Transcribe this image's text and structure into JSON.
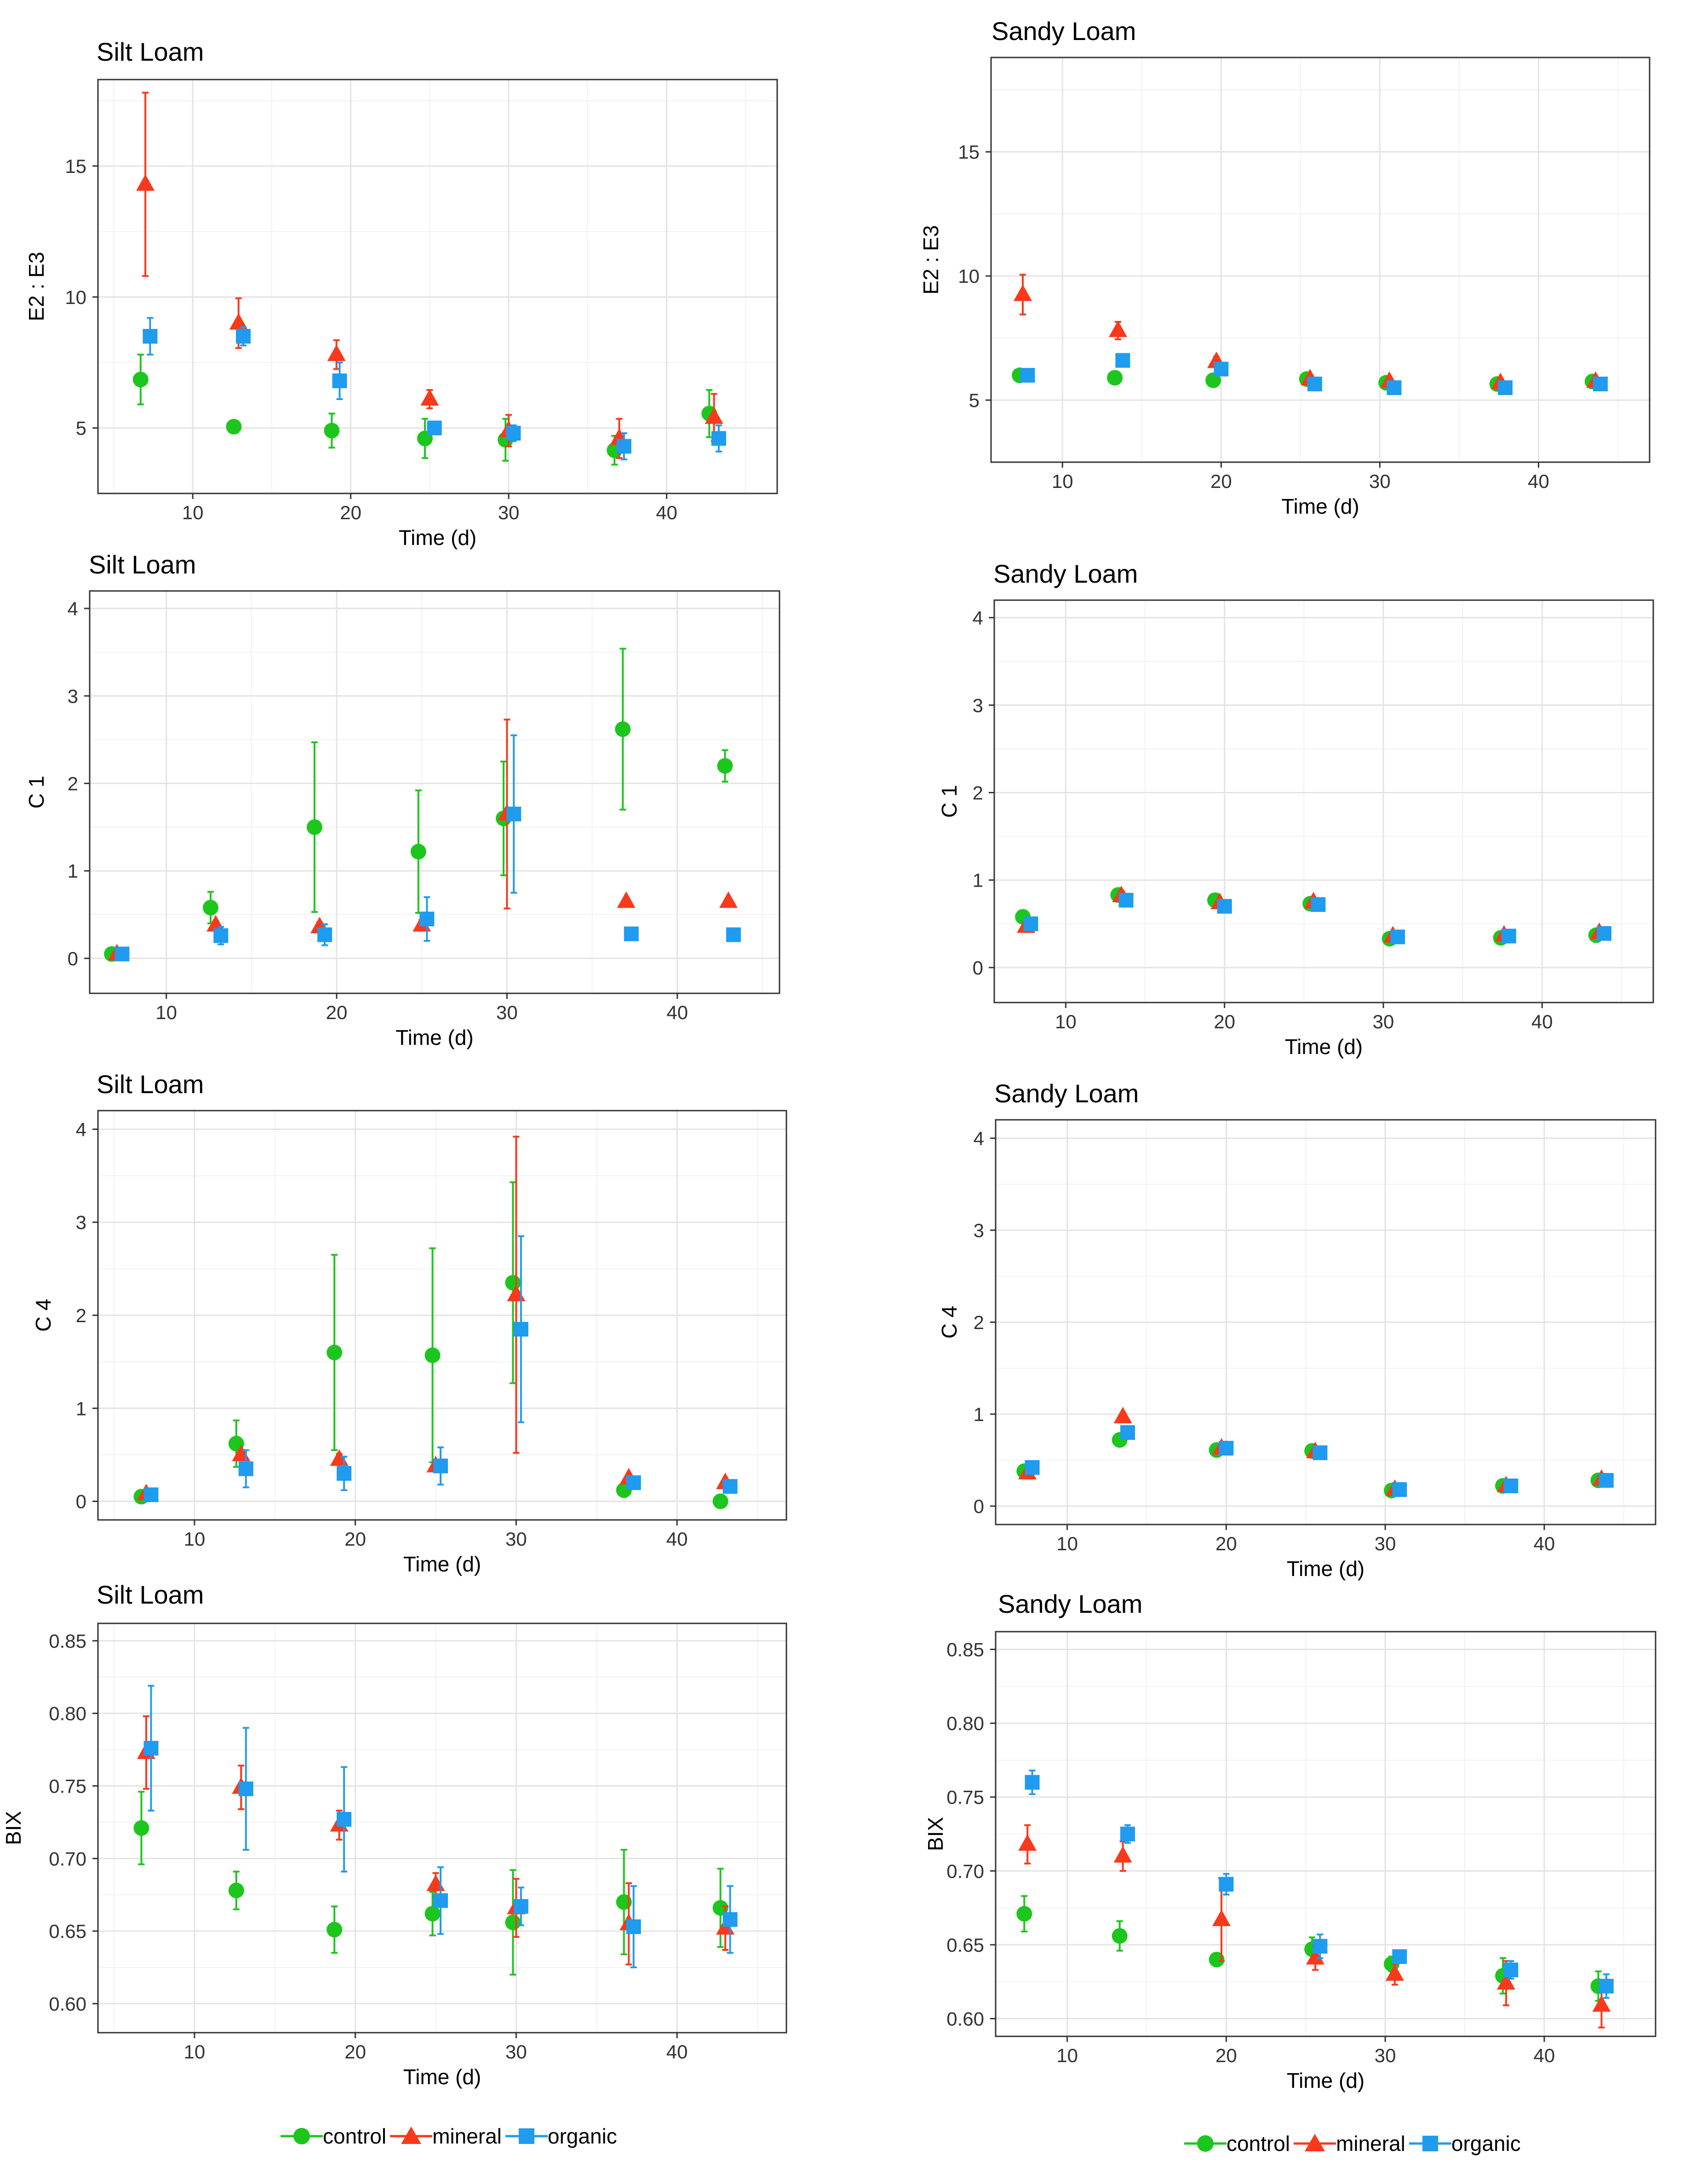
{
  "colors": {
    "control": "#1cc61c",
    "mineral": "#f8391b",
    "organic": "#1f9bf0"
  },
  "legend": [
    {
      "key": "control",
      "label": "control",
      "shape": "circle"
    },
    {
      "key": "mineral",
      "label": "mineral",
      "shape": "triangle"
    },
    {
      "key": "organic",
      "label": "organic",
      "shape": "square"
    }
  ],
  "chart_data": [
    {
      "id": "e2e3-silt",
      "type": "scatter",
      "title": "Silt Loam",
      "xlabel": "Time (d)",
      "ylabel": "E2 : E3",
      "xlim": [
        4,
        47
      ],
      "ylim": [
        2.5,
        18.3
      ],
      "xticks": [
        10,
        20,
        30,
        40
      ],
      "yticks": [
        5,
        10,
        15
      ],
      "series": [
        {
          "name": "control",
          "x": [
            6.7,
            12.6,
            18.8,
            24.7,
            29.8,
            36.7,
            42.7
          ],
          "y": [
            6.85,
            5.05,
            4.9,
            4.6,
            4.55,
            4.15,
            5.55
          ],
          "err": [
            0.95,
            0.12,
            0.65,
            0.75,
            0.8,
            0.55,
            0.9
          ]
        },
        {
          "name": "mineral",
          "x": [
            7.0,
            12.9,
            19.1,
            25.0,
            30.0,
            37.0,
            43.0
          ],
          "y": [
            14.3,
            9.0,
            7.8,
            6.1,
            4.9,
            4.6,
            5.4
          ],
          "err": [
            3.5,
            0.95,
            0.55,
            0.35,
            0.6,
            0.75,
            0.9
          ]
        },
        {
          "name": "organic",
          "x": [
            7.3,
            13.2,
            19.3,
            25.3,
            30.3,
            37.3,
            43.3
          ],
          "y": [
            8.5,
            8.5,
            6.8,
            5.0,
            4.8,
            4.3,
            4.6
          ],
          "err": [
            0.7,
            0.35,
            0.7,
            0.2,
            0.3,
            0.5,
            0.5
          ]
        }
      ]
    },
    {
      "id": "e2e3-sandy",
      "type": "scatter",
      "title": "Sandy Loam",
      "xlabel": "Time (d)",
      "ylabel": "E2 : E3",
      "xlim": [
        5.5,
        47
      ],
      "ylim": [
        2.5,
        18.8
      ],
      "xticks": [
        10,
        20,
        30,
        40
      ],
      "yticks": [
        5,
        10,
        15
      ],
      "series": [
        {
          "name": "control",
          "x": [
            7.3,
            13.3,
            19.5,
            25.4,
            30.4,
            37.4,
            43.4
          ],
          "y": [
            6.0,
            5.9,
            5.8,
            5.85,
            5.7,
            5.65,
            5.75
          ],
          "err": [
            0.1,
            0.1,
            0.1,
            0.1,
            0.1,
            0.1,
            0.1
          ]
        },
        {
          "name": "mineral",
          "x": [
            7.5,
            13.5,
            19.7,
            25.6,
            30.6,
            37.6,
            43.6
          ],
          "y": [
            9.25,
            7.8,
            6.55,
            5.85,
            5.75,
            5.7,
            5.75
          ],
          "err": [
            0.8,
            0.35,
            0.2,
            0.15,
            0.15,
            0.15,
            0.15
          ]
        },
        {
          "name": "organic",
          "x": [
            7.8,
            13.8,
            20.0,
            25.9,
            30.9,
            37.9,
            43.9
          ],
          "y": [
            6.0,
            6.6,
            6.25,
            5.65,
            5.5,
            5.5,
            5.65
          ],
          "err": [
            0.1,
            0.12,
            0.15,
            0.1,
            0.1,
            0.1,
            0.1
          ]
        }
      ]
    },
    {
      "id": "c1-silt",
      "type": "scatter",
      "title": "Silt Loam",
      "xlabel": "Time (d)",
      "ylabel": "C 1",
      "xlim": [
        5.5,
        46
      ],
      "ylim": [
        -0.4,
        4.2
      ],
      "xticks": [
        10,
        20,
        30,
        40
      ],
      "yticks": [
        0,
        1,
        2,
        3,
        4
      ],
      "series": [
        {
          "name": "control",
          "x": [
            6.8,
            12.6,
            18.7,
            24.8,
            29.8,
            36.8,
            42.8
          ],
          "y": [
            0.05,
            0.58,
            1.5,
            1.22,
            1.6,
            2.62,
            2.2
          ],
          "err": [
            0.03,
            0.18,
            0.97,
            0.7,
            0.65,
            0.92,
            0.18
          ]
        },
        {
          "name": "mineral",
          "x": [
            7.1,
            12.9,
            19.0,
            25.0,
            30.0,
            37.0,
            43.0
          ],
          "y": [
            0.05,
            0.38,
            0.36,
            0.38,
            1.65,
            0.65,
            0.65
          ],
          "err": [
            0.02,
            0.05,
            0.05,
            0.06,
            1.08,
            0.03,
            0.03
          ]
        },
        {
          "name": "organic",
          "x": [
            7.4,
            13.2,
            19.3,
            25.3,
            30.4,
            37.3,
            43.3
          ],
          "y": [
            0.05,
            0.26,
            0.27,
            0.45,
            1.65,
            0.28,
            0.27
          ],
          "err": [
            0.02,
            0.1,
            0.12,
            0.25,
            0.9,
            0.03,
            0.03
          ]
        }
      ]
    },
    {
      "id": "c1-sandy",
      "type": "scatter",
      "title": "Sandy Loam",
      "xlabel": "Time (d)",
      "ylabel": "C 1",
      "xlim": [
        5.5,
        47
      ],
      "ylim": [
        -0.4,
        4.2
      ],
      "xticks": [
        10,
        20,
        30,
        40
      ],
      "yticks": [
        0,
        1,
        2,
        3,
        4
      ],
      "series": [
        {
          "name": "control",
          "x": [
            7.3,
            13.3,
            19.4,
            25.4,
            30.4,
            37.4,
            43.4
          ],
          "y": [
            0.58,
            0.83,
            0.77,
            0.73,
            0.33,
            0.34,
            0.37
          ],
          "err": [
            0.03,
            0.04,
            0.03,
            0.03,
            0.02,
            0.02,
            0.02
          ]
        },
        {
          "name": "mineral",
          "x": [
            7.5,
            13.5,
            19.7,
            25.6,
            30.6,
            37.6,
            43.6
          ],
          "y": [
            0.47,
            0.82,
            0.74,
            0.75,
            0.36,
            0.37,
            0.4
          ],
          "err": [
            0.03,
            0.03,
            0.03,
            0.03,
            0.02,
            0.02,
            0.02
          ]
        },
        {
          "name": "organic",
          "x": [
            7.8,
            13.8,
            20.0,
            25.9,
            30.9,
            37.9,
            43.9
          ],
          "y": [
            0.5,
            0.77,
            0.7,
            0.72,
            0.35,
            0.36,
            0.39
          ],
          "err": [
            0.03,
            0.03,
            0.03,
            0.03,
            0.02,
            0.02,
            0.02
          ]
        }
      ]
    },
    {
      "id": "c4-silt",
      "type": "scatter",
      "title": "Silt Loam",
      "xlabel": "Time (d)",
      "ylabel": "C 4",
      "xlim": [
        4,
        46.8
      ],
      "ylim": [
        -0.2,
        4.2
      ],
      "xticks": [
        10,
        20,
        30,
        40
      ],
      "yticks": [
        0,
        1,
        2,
        3,
        4
      ],
      "series": [
        {
          "name": "control",
          "x": [
            6.7,
            12.6,
            18.7,
            24.8,
            29.8,
            36.7,
            42.7
          ],
          "y": [
            0.05,
            0.62,
            1.6,
            1.57,
            2.35,
            0.12,
            0.0
          ],
          "err": [
            0.02,
            0.25,
            1.05,
            1.15,
            1.08,
            0.03,
            0.02
          ]
        },
        {
          "name": "mineral",
          "x": [
            7.0,
            12.9,
            19.0,
            25.0,
            30.0,
            37.0,
            43.0
          ],
          "y": [
            0.08,
            0.5,
            0.45,
            0.38,
            2.22,
            0.25,
            0.2
          ],
          "err": [
            0.02,
            0.05,
            0.06,
            0.06,
            1.7,
            0.03,
            0.03
          ]
        },
        {
          "name": "organic",
          "x": [
            7.3,
            13.2,
            19.3,
            25.3,
            30.3,
            37.3,
            43.3
          ],
          "y": [
            0.07,
            0.35,
            0.3,
            0.38,
            1.85,
            0.2,
            0.16
          ],
          "err": [
            0.02,
            0.2,
            0.18,
            0.2,
            1.0,
            0.03,
            0.03
          ]
        }
      ]
    },
    {
      "id": "c4-sandy",
      "type": "scatter",
      "title": "Sandy Loam",
      "xlabel": "Time (d)",
      "ylabel": "C 4",
      "xlim": [
        5.5,
        47
      ],
      "ylim": [
        -0.2,
        4.2
      ],
      "xticks": [
        10,
        20,
        30,
        40
      ],
      "yticks": [
        0,
        1,
        2,
        3,
        4
      ],
      "series": [
        {
          "name": "control",
          "x": [
            7.3,
            13.3,
            19.4,
            25.4,
            30.4,
            37.4,
            43.4
          ],
          "y": [
            0.38,
            0.72,
            0.61,
            0.6,
            0.17,
            0.22,
            0.28
          ],
          "err": [
            0.03,
            0.04,
            0.04,
            0.03,
            0.02,
            0.02,
            0.02
          ]
        },
        {
          "name": "mineral",
          "x": [
            7.5,
            13.5,
            19.7,
            25.6,
            30.6,
            37.6,
            43.6
          ],
          "y": [
            0.36,
            0.97,
            0.63,
            0.59,
            0.18,
            0.22,
            0.29
          ],
          "err": [
            0.03,
            0.04,
            0.04,
            0.03,
            0.02,
            0.02,
            0.02
          ]
        },
        {
          "name": "organic",
          "x": [
            7.8,
            13.8,
            20.0,
            25.9,
            30.9,
            37.9,
            43.9
          ],
          "y": [
            0.42,
            0.8,
            0.63,
            0.58,
            0.18,
            0.22,
            0.28
          ],
          "err": [
            0.03,
            0.04,
            0.04,
            0.03,
            0.02,
            0.02,
            0.02
          ]
        }
      ]
    },
    {
      "id": "bix-silt",
      "type": "scatter",
      "title": "Silt Loam",
      "xlabel": "Time (d)",
      "ylabel": "BIX",
      "xlim": [
        4,
        46.8
      ],
      "ylim": [
        0.58,
        0.862
      ],
      "xticks": [
        10,
        20,
        30,
        40
      ],
      "yticks": [
        0.6,
        0.65,
        0.7,
        0.75,
        0.8,
        0.85
      ],
      "ytick_labels": [
        "0.60",
        "0.65",
        "0.70",
        "0.75",
        "0.80",
        "0.85"
      ],
      "series": [
        {
          "name": "control",
          "x": [
            6.7,
            12.6,
            18.7,
            24.8,
            29.8,
            36.7,
            42.7
          ],
          "y": [
            0.721,
            0.678,
            0.651,
            0.662,
            0.656,
            0.67,
            0.666
          ],
          "err": [
            0.025,
            0.013,
            0.016,
            0.015,
            0.036,
            0.036,
            0.027
          ]
        },
        {
          "name": "mineral",
          "x": [
            7.0,
            12.9,
            19.0,
            25.0,
            30.0,
            37.0,
            43.0
          ],
          "y": [
            0.773,
            0.749,
            0.723,
            0.682,
            0.666,
            0.655,
            0.652
          ],
          "err": [
            0.025,
            0.015,
            0.01,
            0.008,
            0.02,
            0.028,
            0.015
          ]
        },
        {
          "name": "organic",
          "x": [
            7.3,
            13.2,
            19.3,
            25.3,
            30.3,
            37.3,
            43.3
          ],
          "y": [
            0.776,
            0.748,
            0.727,
            0.671,
            0.667,
            0.653,
            0.658
          ],
          "err": [
            0.043,
            0.042,
            0.036,
            0.023,
            0.013,
            0.028,
            0.023
          ]
        }
      ]
    },
    {
      "id": "bix-sandy",
      "type": "scatter",
      "title": "Sandy Loam",
      "xlabel": "Time (d)",
      "ylabel": "BIX",
      "xlim": [
        5.5,
        47
      ],
      "ylim": [
        0.588,
        0.862
      ],
      "xticks": [
        10,
        20,
        30,
        40
      ],
      "yticks": [
        0.6,
        0.65,
        0.7,
        0.75,
        0.8,
        0.85
      ],
      "ytick_labels": [
        "0.60",
        "0.65",
        "0.70",
        "0.75",
        "0.80",
        "0.85"
      ],
      "series": [
        {
          "name": "control",
          "x": [
            7.3,
            13.3,
            19.4,
            25.4,
            30.4,
            37.4,
            43.4
          ],
          "y": [
            0.671,
            0.656,
            0.64,
            0.647,
            0.637,
            0.629,
            0.622
          ],
          "err": [
            0.012,
            0.01,
            0.004,
            0.008,
            0.005,
            0.012,
            0.01
          ]
        },
        {
          "name": "mineral",
          "x": [
            7.5,
            13.5,
            19.7,
            25.6,
            30.6,
            37.6,
            43.6
          ],
          "y": [
            0.718,
            0.71,
            0.667,
            0.641,
            0.63,
            0.624,
            0.609
          ],
          "err": [
            0.013,
            0.01,
            0.028,
            0.008,
            0.007,
            0.015,
            0.015
          ]
        },
        {
          "name": "organic",
          "x": [
            7.8,
            13.8,
            20.0,
            25.9,
            30.9,
            37.9,
            43.9
          ],
          "y": [
            0.76,
            0.725,
            0.691,
            0.649,
            0.642,
            0.633,
            0.622
          ],
          "err": [
            0.008,
            0.006,
            0.007,
            0.008,
            0.004,
            0.006,
            0.008
          ]
        }
      ]
    }
  ]
}
